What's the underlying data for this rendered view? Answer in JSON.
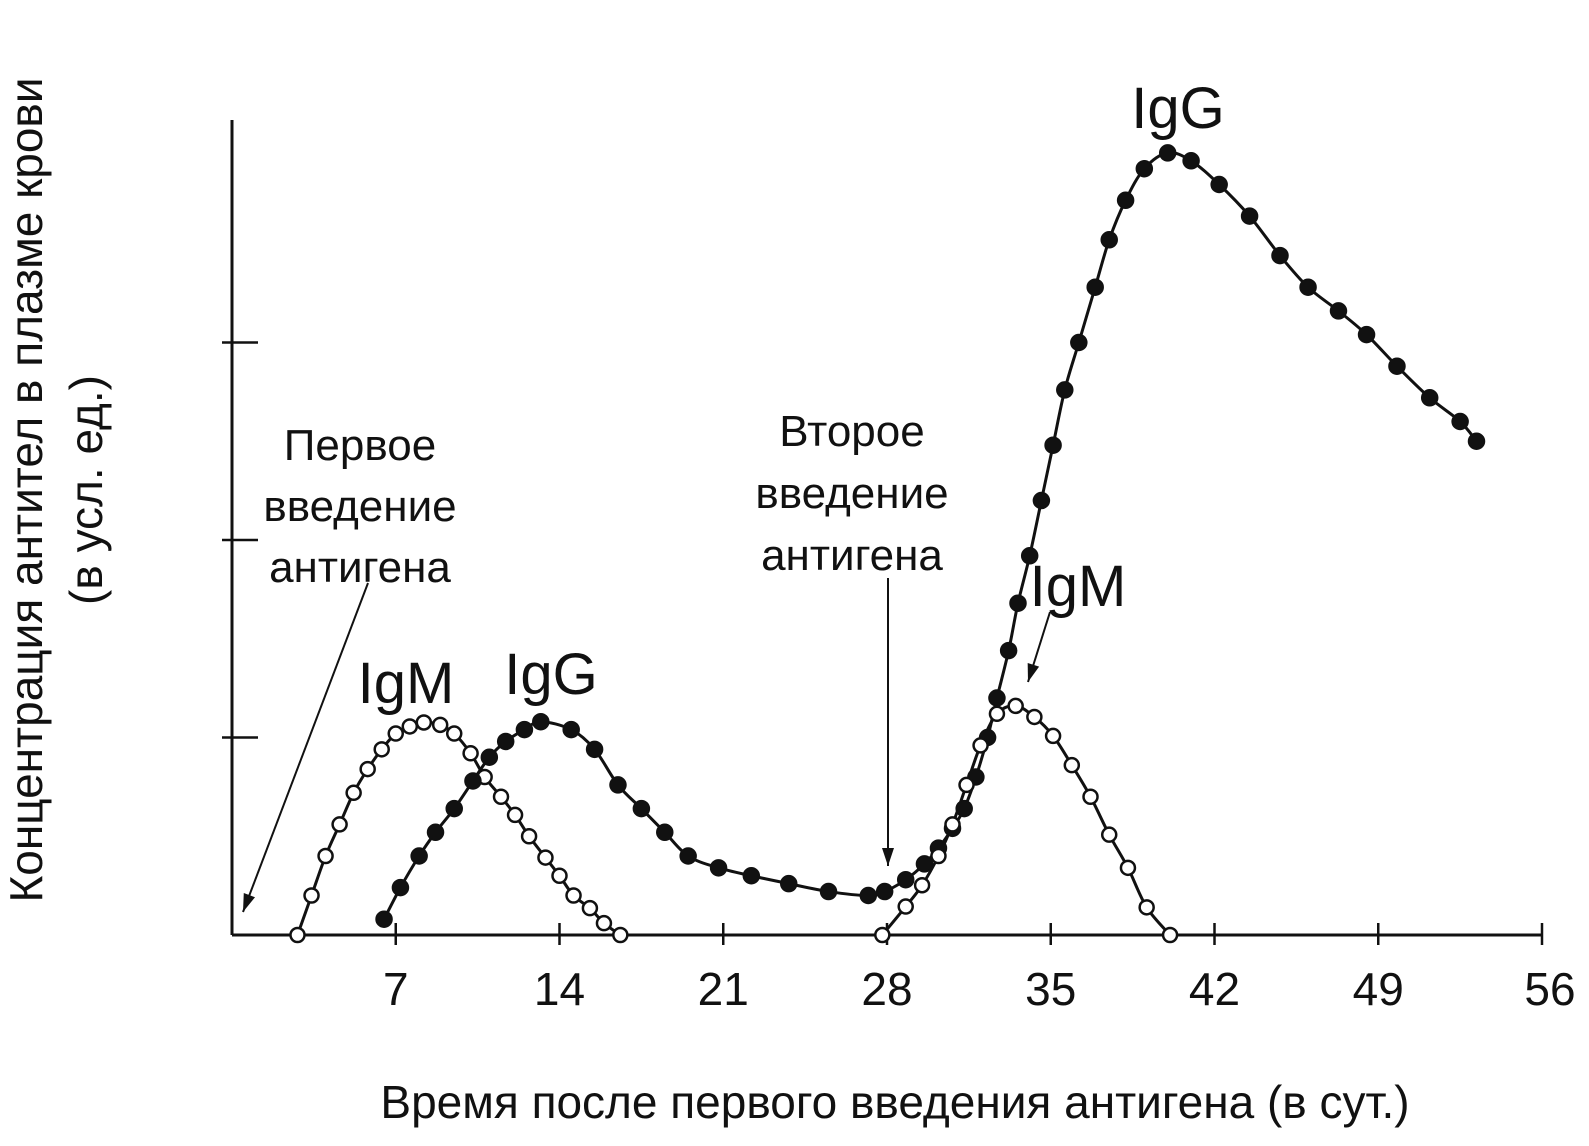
{
  "chart_data": {
    "type": "line",
    "xlabel": "Время после первого введения антигена (в сут.)",
    "ylabel": "Концентрация антител в плазме крови",
    "ylabel_units": "(в усл. ед.)",
    "xlim": [
      0,
      56
    ],
    "ylim": [
      0,
      100
    ],
    "x_ticks": [
      7,
      14,
      21,
      28,
      35,
      42,
      49,
      56
    ],
    "y_ticks": [
      25,
      50,
      75
    ],
    "grid": false,
    "series": [
      {
        "label": "IgM",
        "marker": "open-circle",
        "x": [
          2.8,
          3.4,
          4.0,
          4.6,
          5.2,
          5.8,
          6.4,
          7.0,
          7.6,
          8.2,
          8.9,
          9.5,
          10.2,
          10.8,
          11.5,
          12.1,
          12.7,
          13.4,
          14.0,
          14.6,
          15.3,
          15.9,
          16.6
        ],
        "y": [
          0,
          5,
          10,
          14,
          18,
          21,
          23.5,
          25.5,
          26.4,
          26.9,
          26.6,
          25.5,
          23,
          20,
          17.5,
          15.2,
          12.5,
          9.8,
          7.5,
          5,
          3.4,
          1.5,
          0
        ]
      },
      {
        "label": "IgG",
        "marker": "filled-circle",
        "x": [
          6.5,
          7.2,
          8.0,
          8.7,
          9.5,
          10.3,
          11.0,
          11.7,
          12.5,
          13.2,
          14.5,
          15.5,
          16.5,
          17.5,
          18.5,
          19.5,
          20.8,
          22.2,
          23.8,
          25.5,
          27.2,
          27.9,
          28.8,
          29.6,
          30.2,
          30.8,
          31.3,
          31.8,
          32.3,
          32.7,
          33.2,
          33.6,
          34.1,
          34.6,
          35.1,
          35.6,
          36.2,
          36.9,
          37.5,
          38.2,
          39.0,
          40.0,
          41.0,
          42.2,
          43.5,
          44.8,
          46.0,
          47.3,
          48.5,
          49.8,
          51.2,
          52.5,
          53.2
        ],
        "y": [
          2,
          6,
          10,
          13,
          16,
          19.5,
          22.5,
          24.5,
          26,
          27,
          26,
          23.5,
          19,
          16,
          13,
          10,
          8.5,
          7.5,
          6.5,
          5.5,
          5,
          5.5,
          7,
          9,
          11,
          13.5,
          16,
          20,
          25,
          30,
          36,
          42,
          48,
          55,
          62,
          69,
          75,
          82,
          88,
          93,
          97,
          99,
          98,
          95,
          91,
          86,
          82,
          79,
          76,
          72,
          68,
          65,
          62.5
        ]
      },
      {
        "label": "IgM",
        "marker": "open-circle",
        "x": [
          27.8,
          28.8,
          29.5,
          30.2,
          30.8,
          31.4,
          32.0,
          32.7,
          33.5,
          34.3,
          35.1,
          35.9,
          36.7,
          37.5,
          38.3,
          39.1,
          40.1
        ],
        "y": [
          0,
          3.6,
          6.3,
          10,
          14,
          19,
          24,
          28,
          29,
          27.6,
          25.2,
          21.5,
          17.5,
          12.7,
          8.5,
          3.5,
          0
        ]
      }
    ],
    "annotations": {
      "first_injection": [
        "Первое",
        "введение",
        "антигена"
      ],
      "second_injection": [
        "Второе",
        "введение",
        "антигена"
      ],
      "igm_left": "IgM",
      "igg_left": "IgG",
      "igm_right": "IgM",
      "igg_right": "IgG"
    }
  }
}
